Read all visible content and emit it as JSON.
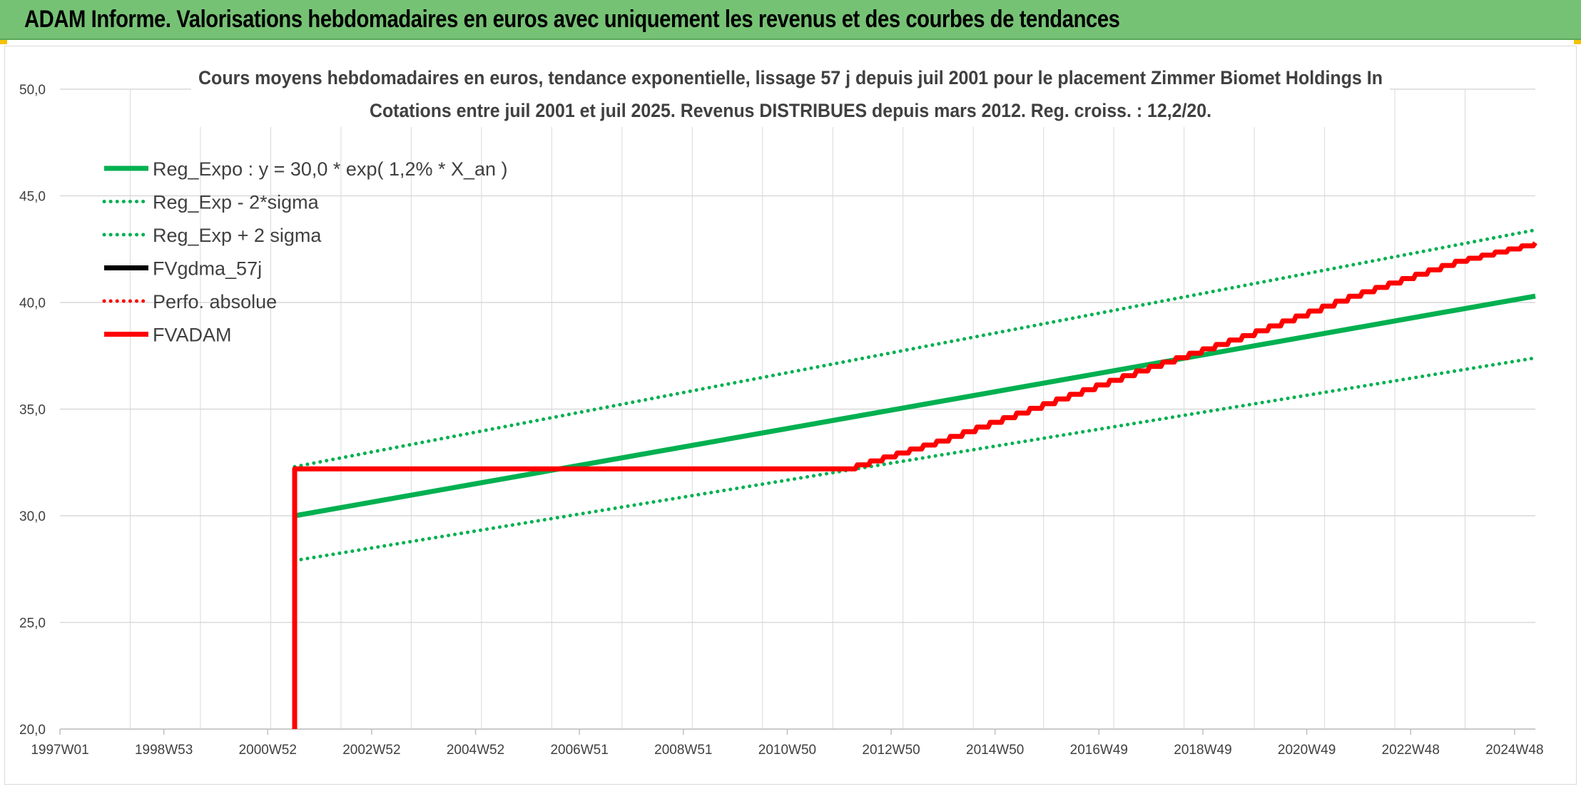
{
  "banner": {
    "title": "ADAM Informe. Valorisations hebdomadaires en euros avec uniquement les revenus et des courbes de tendances"
  },
  "colors": {
    "banner_bg": "#76c275",
    "green": "#00b050",
    "red": "#ff0000",
    "black": "#000000",
    "grid": "#d9d9d9",
    "text": "#404040"
  },
  "chart_data": {
    "type": "line",
    "title_line1": "Cours moyens hebdomadaires en euros, tendance exponentielle, lissage 57 j depuis juil 2001 pour le placement Zimmer Biomet Holdings In",
    "title_line2": "Cotations entre juil 2001 et juil 2025. Revenus DISTRIBUES depuis mars 2012. Reg. croiss. : 12,2/20.",
    "x_ticks": [
      "1997W01",
      "1998W53",
      "2000W52",
      "2002W52",
      "2004W52",
      "2006W51",
      "2008W51",
      "2010W50",
      "2012W50",
      "2014W50",
      "2016W49",
      "2018W49",
      "2020W49",
      "2022W48",
      "2024W48"
    ],
    "x_range": [
      1997.0,
      2025.6
    ],
    "ylim": [
      20,
      50
    ],
    "y_ticks": [
      "20,0",
      "25,0",
      "30,0",
      "35,0",
      "40,0",
      "45,0",
      "50,0"
    ],
    "grid": true,
    "legend_position": "top-left",
    "series": [
      {
        "name": "Reg_Expo : y = 30,0 * exp( 1,2% *  X_an )",
        "style": "solid",
        "color": "#00b050",
        "points": [
          [
            2001.55,
            30.0
          ],
          [
            2025.6,
            40.3
          ]
        ]
      },
      {
        "name": "Reg_Exp - 2*sigma",
        "style": "dotted",
        "color": "#00b050",
        "points": [
          [
            2001.55,
            27.9
          ],
          [
            2025.6,
            37.4
          ]
        ]
      },
      {
        "name": "Reg_Exp + 2 sigma",
        "style": "dotted",
        "color": "#00b050",
        "points": [
          [
            2001.55,
            32.3
          ],
          [
            2025.6,
            43.4
          ]
        ]
      },
      {
        "name": "FVgdma_57j",
        "style": "solid",
        "color": "#000000",
        "points": []
      },
      {
        "name": "Perfo. absolue",
        "style": "dotted",
        "color": "#ff0000",
        "points": []
      },
      {
        "name": "FVADAM",
        "style": "solid",
        "color": "#ff0000",
        "points": [
          [
            2001.55,
            20.0
          ],
          [
            2001.55,
            32.2
          ],
          [
            2012.2,
            32.2
          ],
          [
            2014.0,
            33.5
          ],
          [
            2016.0,
            35.2
          ],
          [
            2018.0,
            36.9
          ],
          [
            2020.0,
            38.5
          ],
          [
            2022.0,
            40.3
          ],
          [
            2024.0,
            41.9
          ],
          [
            2025.6,
            42.8
          ]
        ]
      }
    ]
  }
}
